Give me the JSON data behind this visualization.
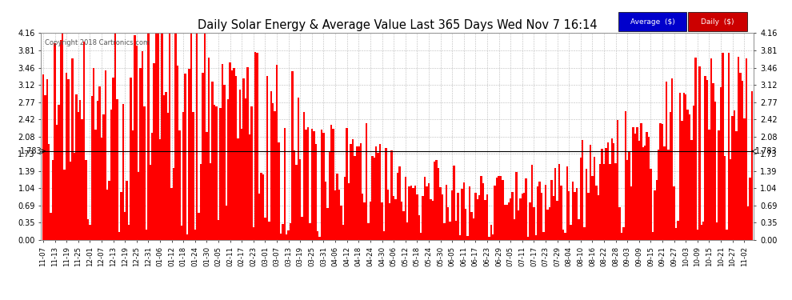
{
  "title": "Daily Solar Energy & Average Value Last 365 Days Wed Nov 7 16:14",
  "copyright": "Copyright 2018 Cartronics.com",
  "average_value": 1.783,
  "average_label": "1.783",
  "bar_color": "#ff0000",
  "average_line_color": "#000000",
  "background_color": "#ffffff",
  "plot_bg_color": "#ffffff",
  "grid_color": "#bbbbbb",
  "ylim": [
    0.0,
    4.16
  ],
  "yticks": [
    0.0,
    0.35,
    0.69,
    1.04,
    1.39,
    1.73,
    2.08,
    2.42,
    2.77,
    3.12,
    3.46,
    3.81,
    4.16
  ],
  "legend_average_color": "#0000cc",
  "legend_daily_color": "#cc0000",
  "x_labels": [
    "11-07",
    "11-13",
    "11-19",
    "11-25",
    "12-01",
    "12-07",
    "12-13",
    "12-19",
    "12-25",
    "12-31",
    "01-06",
    "01-12",
    "01-18",
    "01-24",
    "01-30",
    "02-05",
    "02-11",
    "02-17",
    "02-23",
    "03-01",
    "03-07",
    "03-13",
    "03-19",
    "03-25",
    "03-31",
    "04-06",
    "04-12",
    "04-18",
    "04-24",
    "04-30",
    "05-06",
    "05-12",
    "05-18",
    "05-24",
    "05-30",
    "06-05",
    "06-11",
    "06-17",
    "06-23",
    "06-29",
    "07-05",
    "07-11",
    "07-17",
    "07-23",
    "07-29",
    "08-04",
    "08-10",
    "08-16",
    "08-22",
    "08-28",
    "09-03",
    "09-09",
    "09-15",
    "09-21",
    "09-27",
    "10-03",
    "10-09",
    "10-15",
    "10-21",
    "10-27",
    "11-02"
  ],
  "num_bars": 365,
  "figsize": [
    9.9,
    3.75
  ],
  "dpi": 100
}
